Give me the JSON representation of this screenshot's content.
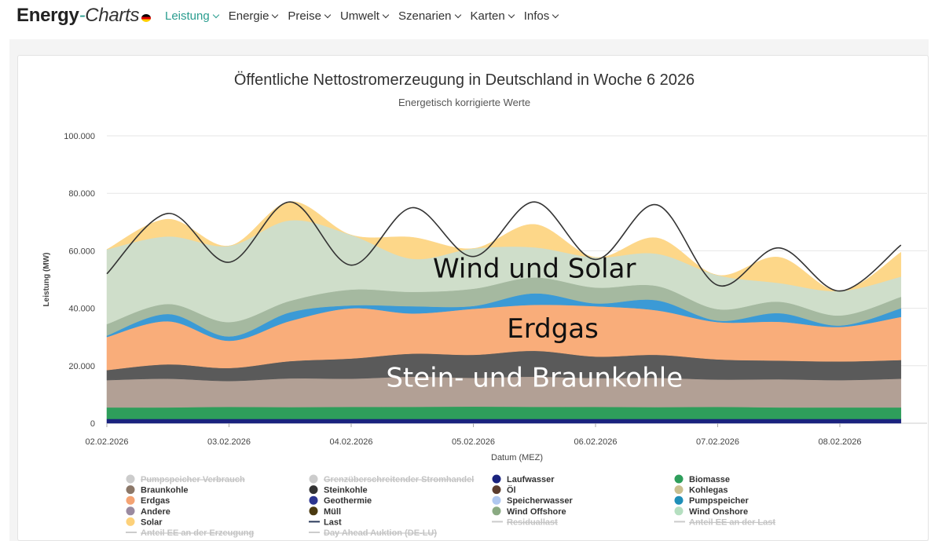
{
  "nav": {
    "brand_main": "Energy",
    "brand_dash": "-",
    "brand_charts": "Charts",
    "items": [
      {
        "label": "Leistung",
        "active": true
      },
      {
        "label": "Energie",
        "active": false
      },
      {
        "label": "Preise",
        "active": false
      },
      {
        "label": "Umwelt",
        "active": false
      },
      {
        "label": "Szenarien",
        "active": false
      },
      {
        "label": "Karten",
        "active": false
      },
      {
        "label": "Infos",
        "active": false
      }
    ]
  },
  "chart_data": {
    "type": "area",
    "title": "Öffentliche Nettostromerzeugung in Deutschland in Woche 6 2026",
    "subtitle": "Energetisch korrigierte Werte",
    "xlabel": "Datum (MEZ)",
    "ylabel": "Leistung (MW)",
    "ylim": [
      0,
      100000
    ],
    "yticks": [
      "0",
      "20.000",
      "40.000",
      "60.000",
      "80.000",
      "100.000"
    ],
    "ytick_values": [
      0,
      20000,
      40000,
      60000,
      80000,
      100000
    ],
    "xticks": [
      "02.02.2026",
      "03.02.2026",
      "04.02.2026",
      "05.02.2026",
      "06.02.2026",
      "07.02.2026",
      "08.02.2026"
    ],
    "x_days": [
      0,
      0.5,
      1,
      1.5,
      2,
      2.5,
      3,
      3.5,
      4,
      4.5,
      5,
      5.5,
      6,
      6.5
    ],
    "stack_series": [
      {
        "name": "Laufwasser",
        "color": "#1a237e",
        "values": [
          1500,
          1500,
          1500,
          1500,
          1500,
          1500,
          1500,
          1500,
          1500,
          1500,
          1500,
          1500,
          1500,
          1500
        ]
      },
      {
        "name": "Biomasse",
        "color": "#2e9e5b",
        "values": [
          4000,
          4000,
          4200,
          4100,
          4200,
          4200,
          4300,
          4200,
          4200,
          4100,
          4200,
          4000,
          4000,
          4000
        ]
      },
      {
        "name": "Braunkohle",
        "color": "#b2a095",
        "values": [
          9500,
          10000,
          9000,
          10000,
          9800,
          10500,
          10000,
          10500,
          10000,
          10200,
          9500,
          9800,
          9500,
          10000
        ]
      },
      {
        "name": "Steinkohle",
        "color": "#5a5a5a",
        "values": [
          3500,
          5000,
          4500,
          6000,
          7000,
          8000,
          8000,
          9000,
          7500,
          8000,
          7000,
          6500,
          6500,
          6500
        ]
      },
      {
        "name": "Erdgas",
        "color": "#f9ad7a",
        "values": [
          11500,
          15000,
          9500,
          14000,
          17500,
          14000,
          16000,
          16000,
          17500,
          15500,
          13000,
          13500,
          12000,
          15000
        ]
      },
      {
        "name": "Pumpspeicher",
        "color": "#3b9ad6",
        "values": [
          500,
          2500,
          1500,
          3000,
          1000,
          2500,
          1000,
          4000,
          1000,
          3500,
          500,
          3000,
          500,
          3000
        ]
      },
      {
        "name": "Wind Offshore",
        "color": "#a5b9a0",
        "values": [
          4000,
          3500,
          5000,
          4000,
          5500,
          5000,
          6000,
          5500,
          5500,
          5000,
          4000,
          4000,
          3500,
          4000
        ]
      },
      {
        "name": "Wind Onshore",
        "color": "#cfdeca",
        "values": [
          26000,
          23500,
          26500,
          28000,
          19000,
          11500,
          14000,
          10500,
          10500,
          11200,
          11800,
          6500,
          8500,
          7000
        ]
      },
      {
        "name": "Solar",
        "color": "#fdd789",
        "values": [
          0,
          6000,
          0,
          6500,
          0,
          7500,
          0,
          8000,
          0,
          5500,
          0,
          9000,
          0,
          8500
        ]
      }
    ],
    "lines": [
      {
        "name": "Last",
        "color": "#333333",
        "values": [
          52000,
          73000,
          56000,
          77000,
          55000,
          75000,
          58000,
          77000,
          57000,
          76000,
          48000,
          61000,
          46000,
          62000
        ]
      }
    ],
    "legend": [
      {
        "label": "Pumpspeicher Verbrauch",
        "color": "#cccccc",
        "kind": "dot",
        "hidden": true
      },
      {
        "label": "Grenzüberschreitender Stromhandel",
        "color": "#cccccc",
        "kind": "dot",
        "hidden": true
      },
      {
        "label": "Laufwasser",
        "color": "#1a237e",
        "kind": "dot",
        "hidden": false
      },
      {
        "label": "Biomasse",
        "color": "#2e9e5b",
        "kind": "dot",
        "hidden": false
      },
      {
        "label": "Braunkohle",
        "color": "#8b7768",
        "kind": "dot",
        "hidden": false
      },
      {
        "label": "Steinkohle",
        "color": "#333333",
        "kind": "dot",
        "hidden": false
      },
      {
        "label": "Öl",
        "color": "#5c3d2e",
        "kind": "dot",
        "hidden": false
      },
      {
        "label": "Kohlegas",
        "color": "#c9bf8f",
        "kind": "dot",
        "hidden": false
      },
      {
        "label": "Erdgas",
        "color": "#f4a373",
        "kind": "dot",
        "hidden": false
      },
      {
        "label": "Geothermie",
        "color": "#2c3590",
        "kind": "dot",
        "hidden": false
      },
      {
        "label": "Speicherwasser",
        "color": "#b0c8f0",
        "kind": "dot",
        "hidden": false
      },
      {
        "label": "Pumpspeicher",
        "color": "#1f8fb8",
        "kind": "dot",
        "hidden": false
      },
      {
        "label": "Andere",
        "color": "#9a8aa0",
        "kind": "dot",
        "hidden": false
      },
      {
        "label": "Müll",
        "color": "#4b3a10",
        "kind": "dot",
        "hidden": false
      },
      {
        "label": "Wind Offshore",
        "color": "#8aaa82",
        "kind": "dot",
        "hidden": false
      },
      {
        "label": "Wind Onshore",
        "color": "#b5dfc0",
        "kind": "dot",
        "hidden": false
      },
      {
        "label": "Solar",
        "color": "#fdd17a",
        "kind": "dot",
        "hidden": false
      },
      {
        "label": "Last",
        "color": "#2a3a5a",
        "kind": "line",
        "hidden": false
      },
      {
        "label": "Residuallast",
        "color": "#cccccc",
        "kind": "line",
        "hidden": true
      },
      {
        "label": "Anteil EE an der Last",
        "color": "#cccccc",
        "kind": "line",
        "hidden": true
      },
      {
        "label": "Anteil EE an der Erzeugung",
        "color": "#cccccc",
        "kind": "line",
        "hidden": true
      },
      {
        "label": "Day Ahead Auktion (DE-LU)",
        "color": "#cccccc",
        "kind": "line",
        "hidden": true
      }
    ],
    "annotations": [
      {
        "text": "Wind und Solar",
        "x_day": 3.5,
        "y": 54000
      },
      {
        "text": "Erdgas",
        "x_day": 3.65,
        "y": 33000
      },
      {
        "text": "Stein- und Braunkohle",
        "x_day": 3.5,
        "y": 16000
      }
    ]
  }
}
